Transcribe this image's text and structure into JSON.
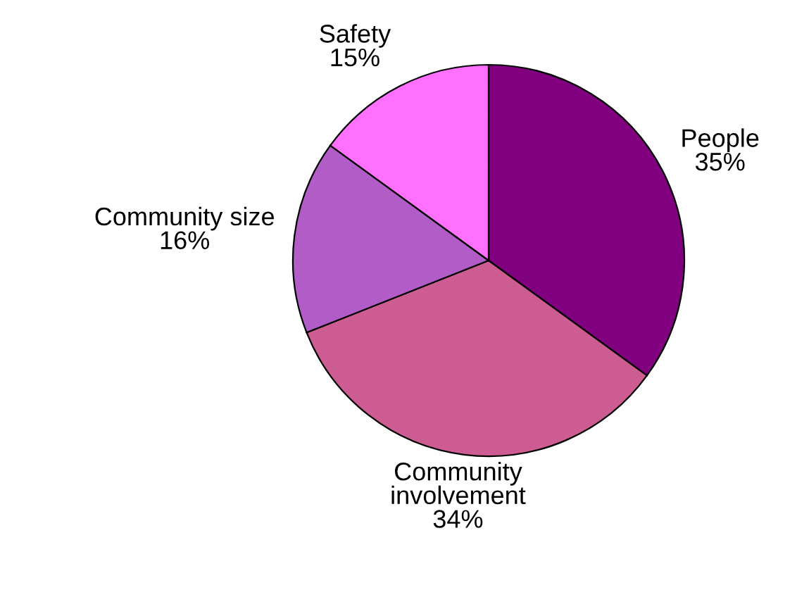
{
  "chart_data": {
    "type": "pie",
    "categories": [
      "People",
      "Community\ninvolvement",
      "Community size",
      "Safety"
    ],
    "values": [
      35,
      34,
      16,
      15
    ],
    "colors": [
      "#800080",
      "#cc5c91",
      "#b25cc8",
      "#ff70ff"
    ],
    "value_labels": [
      "35%",
      "34%",
      "16%",
      "15%"
    ],
    "legend": false
  }
}
